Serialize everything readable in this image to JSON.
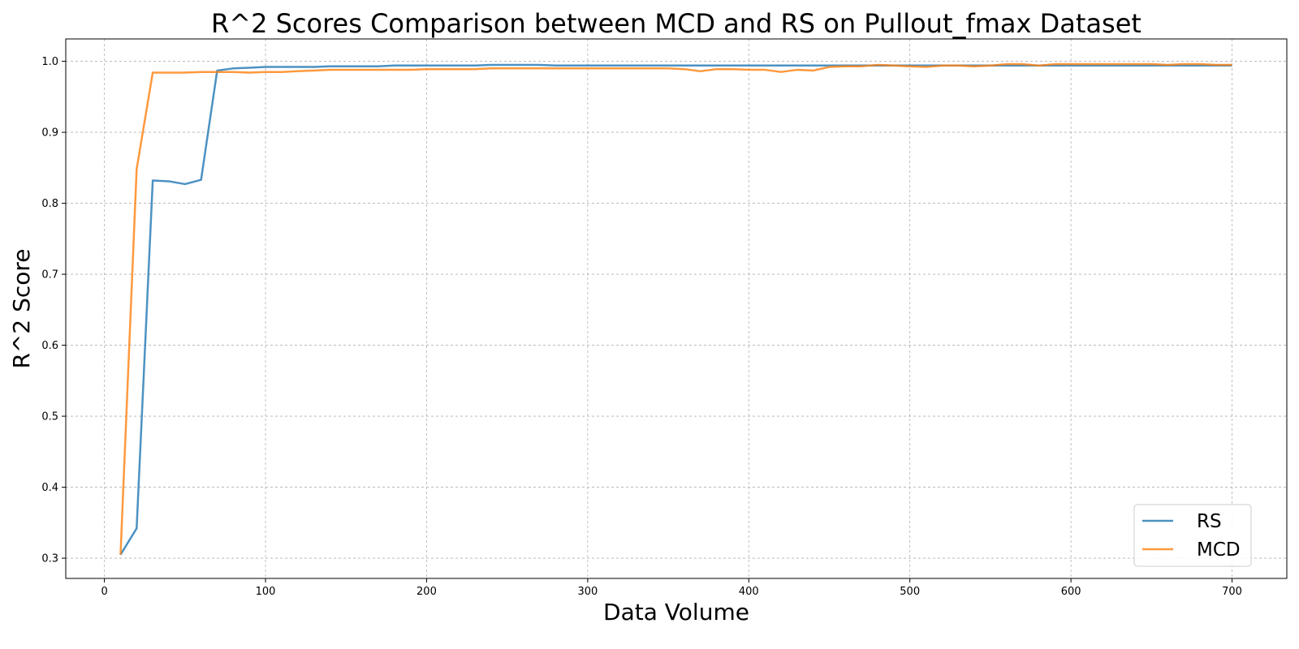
{
  "chart_data": {
    "type": "line",
    "title": "R^2 Scores Comparison between MCD and RS on Pullout_fmax Dataset",
    "xlabel": "Data Volume",
    "ylabel": "R^2 Score",
    "xlim": [
      -24,
      734
    ],
    "ylim": [
      0.2715,
      1.0315
    ],
    "xticks": [
      0,
      100,
      200,
      300,
      400,
      500,
      600,
      700
    ],
    "yticks": [
      0.3,
      0.4,
      0.5,
      0.6,
      0.7,
      0.8,
      0.9,
      1.0
    ],
    "xtick_labels": [
      "0",
      "100",
      "200",
      "300",
      "400",
      "500",
      "600",
      "700"
    ],
    "ytick_labels": [
      "0.3",
      "0.4",
      "0.5",
      "0.6",
      "0.7",
      "0.8",
      "0.9",
      "1.0"
    ],
    "grid": true,
    "legend_position": "bottom-right",
    "x": [
      10,
      20,
      30,
      40,
      50,
      60,
      70,
      80,
      90,
      100,
      110,
      120,
      130,
      140,
      150,
      160,
      170,
      180,
      190,
      200,
      210,
      220,
      230,
      240,
      250,
      260,
      270,
      280,
      290,
      300,
      310,
      320,
      330,
      340,
      350,
      360,
      370,
      380,
      390,
      400,
      410,
      420,
      430,
      440,
      450,
      460,
      470,
      480,
      490,
      500,
      510,
      520,
      530,
      540,
      550,
      560,
      570,
      580,
      590,
      600,
      610,
      620,
      630,
      640,
      650,
      660,
      670,
      680,
      690,
      700
    ],
    "series": [
      {
        "name": "RS",
        "color": "#1f77b4",
        "values": [
          0.305,
          0.342,
          0.832,
          0.831,
          0.827,
          0.833,
          0.987,
          0.99,
          0.991,
          0.992,
          0.992,
          0.992,
          0.992,
          0.993,
          0.993,
          0.993,
          0.993,
          0.994,
          0.994,
          0.994,
          0.994,
          0.994,
          0.994,
          0.995,
          0.995,
          0.995,
          0.995,
          0.994,
          0.994,
          0.994,
          0.994,
          0.994,
          0.994,
          0.994,
          0.994,
          0.994,
          0.994,
          0.994,
          0.994,
          0.994,
          0.994,
          0.994,
          0.994,
          0.994,
          0.994,
          0.994,
          0.994,
          0.994,
          0.994,
          0.994,
          0.994,
          0.994,
          0.994,
          0.994,
          0.994,
          0.994,
          0.994,
          0.994,
          0.994,
          0.994,
          0.994,
          0.994,
          0.994,
          0.994,
          0.994,
          0.994,
          0.994,
          0.994,
          0.994,
          0.994
        ]
      },
      {
        "name": "MCD",
        "color": "#ff7f0e",
        "values": [
          0.305,
          0.848,
          0.984,
          0.984,
          0.984,
          0.985,
          0.985,
          0.985,
          0.984,
          0.985,
          0.985,
          0.986,
          0.987,
          0.988,
          0.988,
          0.988,
          0.988,
          0.988,
          0.988,
          0.989,
          0.989,
          0.989,
          0.989,
          0.99,
          0.99,
          0.99,
          0.99,
          0.99,
          0.99,
          0.99,
          0.99,
          0.99,
          0.99,
          0.99,
          0.99,
          0.989,
          0.986,
          0.989,
          0.989,
          0.988,
          0.988,
          0.985,
          0.988,
          0.987,
          0.992,
          0.993,
          0.993,
          0.995,
          0.994,
          0.993,
          0.992,
          0.994,
          0.994,
          0.993,
          0.994,
          0.996,
          0.996,
          0.994,
          0.996,
          0.996,
          0.996,
          0.996,
          0.996,
          0.996,
          0.996,
          0.995,
          0.996,
          0.996,
          0.995,
          0.995
        ]
      }
    ]
  }
}
